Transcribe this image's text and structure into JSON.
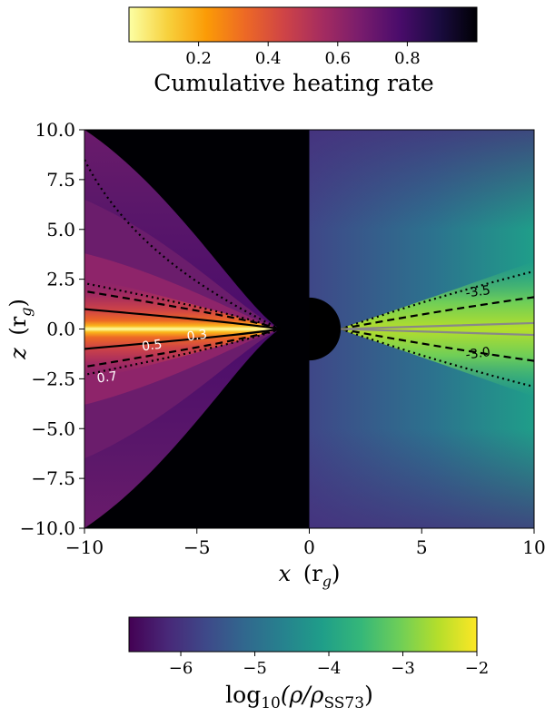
{
  "chart_data": {
    "type": "heatmap",
    "x_axis": {
      "label_main": "x",
      "label_unit": "(r",
      "label_sub": "g",
      "label_close": ")",
      "range": [
        -10,
        10
      ],
      "ticks": [
        -10,
        -5,
        0,
        5,
        10
      ],
      "tick_labels": [
        "−10",
        "−5",
        "0",
        "5",
        "10"
      ]
    },
    "y_axis": {
      "label_main": "z",
      "label_unit": "(r",
      "label_sub": "g",
      "label_close": ")",
      "range": [
        -10,
        10
      ],
      "ticks": [
        10,
        7.5,
        5,
        2.5,
        0,
        -2.5,
        -5,
        -7.5,
        -10
      ],
      "tick_labels": [
        "10.0",
        "7.5",
        "5.0",
        "2.5",
        "0.0",
        "−2.5",
        "−5.0",
        "−7.5",
        "−10.0"
      ]
    },
    "left_panel": {
      "quantity": "Cumulative heating rate",
      "colormap": "inferno_r",
      "contour_levels": [
        {
          "label": "0.3",
          "style": "solid",
          "half_height_at_edge": 1.0
        },
        {
          "label": "0.5",
          "style": "dashed",
          "half_height_at_edge": 1.9
        },
        {
          "label": "0.7",
          "style": "dotted",
          "half_height_at_edge": 2.3
        }
      ]
    },
    "right_panel": {
      "quantity": "log10(rho/rho_SS73)",
      "colormap": "viridis",
      "contour_levels": [
        {
          "label": "-3.5",
          "style": "dotted",
          "half_height_at_edge": 2.9
        },
        {
          "label": "-3.0",
          "style": "dashed",
          "half_height_at_edge": 1.6
        },
        {
          "label": "",
          "style": "solid-gray",
          "half_height_at_edge": 0.3
        }
      ]
    },
    "black_hole": {
      "radius": 1.4
    },
    "colorbar_top": {
      "label": "Cumulative heating rate",
      "range": [
        0,
        1
      ],
      "ticks": [
        0.2,
        0.4,
        0.6,
        0.8
      ],
      "tick_labels": [
        "0.2",
        "0.4",
        "0.6",
        "0.8"
      ],
      "colors": [
        "#fcffa4",
        "#f7d13d",
        "#fb9b06",
        "#ed6925",
        "#cf4446",
        "#a52c60",
        "#781c6d",
        "#4a0c6b",
        "#1b0c41",
        "#000004"
      ]
    },
    "colorbar_bottom": {
      "label_prefix": "log",
      "label_sub": "10",
      "label_body": "(ρ/ρ",
      "label_sub2": "SS73",
      "label_close": ")",
      "range": [
        -6.7,
        -2
      ],
      "ticks": [
        -6,
        -5,
        -4,
        -3,
        -2
      ],
      "tick_labels": [
        "−6",
        "−5",
        "−4",
        "−3",
        "−2"
      ],
      "colors": [
        "#440154",
        "#482878",
        "#3e4989",
        "#31688e",
        "#26828e",
        "#1f9e89",
        "#35b779",
        "#6ece58",
        "#b5de2b",
        "#fde725"
      ]
    }
  }
}
